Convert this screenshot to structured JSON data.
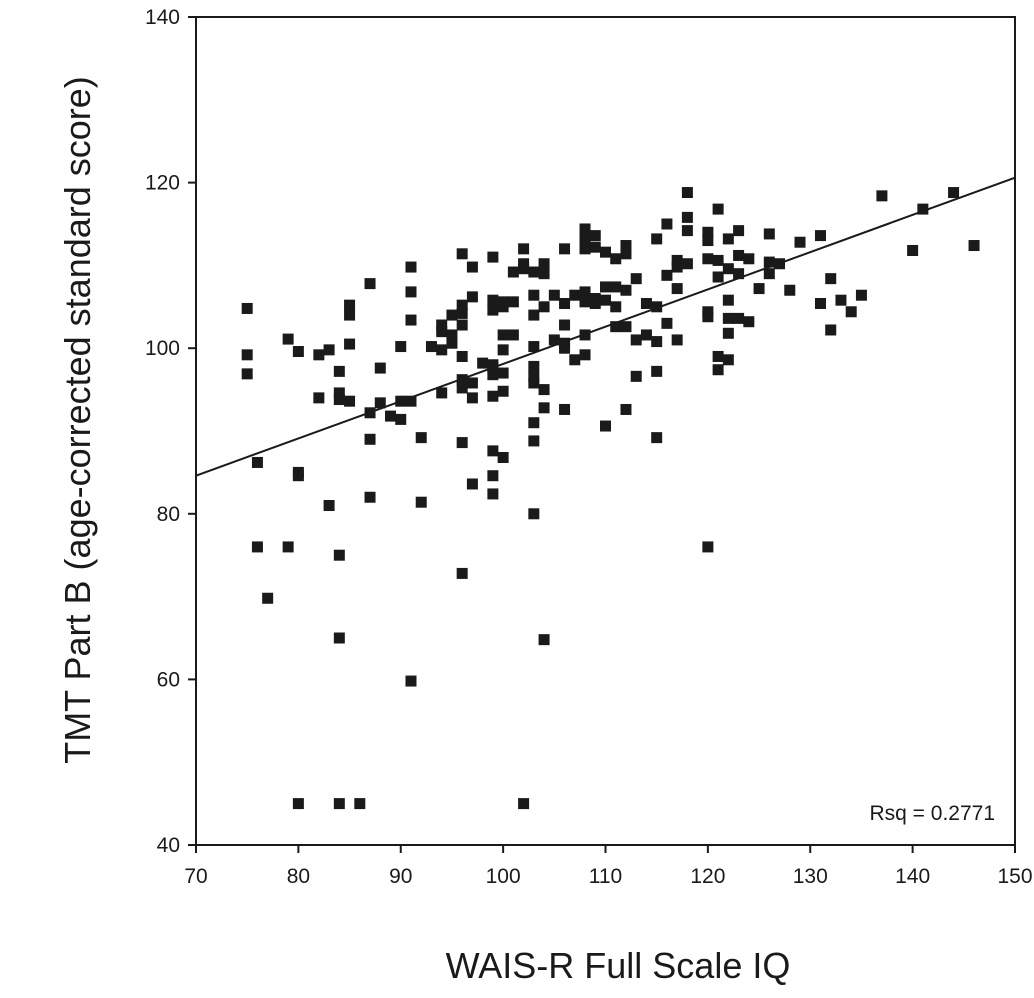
{
  "chart_data": {
    "type": "scatter",
    "xlabel": "WAIS-R Full Scale IQ",
    "ylabel": "TMT Part B (age-corrected standard score)",
    "xlim": [
      70,
      150
    ],
    "ylim": [
      40,
      140
    ],
    "xticks": [
      "70",
      "80",
      "90",
      "100",
      "110",
      "120",
      "130",
      "140",
      "150"
    ],
    "yticks": [
      "40",
      "60",
      "80",
      "100",
      "120",
      "140"
    ],
    "annotation": "Rsq = 0.2771",
    "fit_line": {
      "x": [
        70,
        150
      ],
      "y": [
        84.6,
        120.6
      ]
    },
    "grid": false,
    "marker": "square",
    "color": "#1a1a1a",
    "points": [
      [
        75,
        104.8
      ],
      [
        75,
        99.2
      ],
      [
        75,
        96.9
      ],
      [
        76,
        86.2
      ],
      [
        76,
        76
      ],
      [
        77,
        69.8
      ],
      [
        79,
        101.1
      ],
      [
        79,
        76
      ],
      [
        80,
        99.6
      ],
      [
        80,
        85
      ],
      [
        80,
        84.6
      ],
      [
        80,
        45
      ],
      [
        82,
        99.2
      ],
      [
        82,
        94
      ],
      [
        83,
        99.8
      ],
      [
        83,
        81
      ],
      [
        84,
        97.2
      ],
      [
        84,
        94.6
      ],
      [
        84,
        93.8
      ],
      [
        84,
        75
      ],
      [
        84,
        65
      ],
      [
        84,
        45
      ],
      [
        85,
        105.2
      ],
      [
        85,
        104
      ],
      [
        85,
        100.5
      ],
      [
        85,
        93.6
      ],
      [
        86,
        45
      ],
      [
        87,
        107.8
      ],
      [
        87,
        92.2
      ],
      [
        87,
        89
      ],
      [
        87,
        82
      ],
      [
        88,
        97.6
      ],
      [
        88,
        93.4
      ],
      [
        89,
        91.8
      ],
      [
        90,
        100.2
      ],
      [
        90,
        93.6
      ],
      [
        90,
        91.4
      ],
      [
        91,
        109.8
      ],
      [
        91,
        106.8
      ],
      [
        91,
        103.4
      ],
      [
        91,
        93.6
      ],
      [
        91,
        59.8
      ],
      [
        92,
        89.2
      ],
      [
        92,
        81.4
      ],
      [
        93,
        100.2
      ],
      [
        94,
        102.8
      ],
      [
        94,
        102
      ],
      [
        94,
        99.8
      ],
      [
        94,
        94.6
      ],
      [
        95,
        104
      ],
      [
        95,
        101.6
      ],
      [
        95,
        100.6
      ],
      [
        96,
        111.4
      ],
      [
        96,
        105.2
      ],
      [
        96,
        104.2
      ],
      [
        96,
        102.8
      ],
      [
        96,
        99
      ],
      [
        96,
        96.2
      ],
      [
        96,
        95.2
      ],
      [
        96,
        88.6
      ],
      [
        96,
        72.8
      ],
      [
        97,
        109.8
      ],
      [
        97,
        106.2
      ],
      [
        97,
        95.8
      ],
      [
        97,
        94
      ],
      [
        97,
        83.6
      ],
      [
        98,
        98.2
      ],
      [
        99,
        111
      ],
      [
        99,
        105.8
      ],
      [
        99,
        104.6
      ],
      [
        99,
        98
      ],
      [
        99,
        97.6
      ],
      [
        99,
        96.8
      ],
      [
        99,
        94.2
      ],
      [
        99,
        87.6
      ],
      [
        99,
        84.6
      ],
      [
        99,
        82.4
      ],
      [
        100,
        105.6
      ],
      [
        100,
        105
      ],
      [
        100,
        101.6
      ],
      [
        100,
        99.8
      ],
      [
        100,
        97
      ],
      [
        100,
        94.8
      ],
      [
        100,
        86.8
      ],
      [
        101,
        109.2
      ],
      [
        101,
        105.6
      ],
      [
        101,
        101.6
      ],
      [
        102,
        112
      ],
      [
        102,
        110.2
      ],
      [
        102,
        109.6
      ],
      [
        102,
        45
      ],
      [
        103,
        109.2
      ],
      [
        103,
        106.4
      ],
      [
        103,
        104
      ],
      [
        103,
        100.2
      ],
      [
        103,
        97.8
      ],
      [
        103,
        96.6
      ],
      [
        103,
        95.8
      ],
      [
        103,
        91
      ],
      [
        103,
        88.8
      ],
      [
        103,
        80
      ],
      [
        104,
        110.2
      ],
      [
        104,
        109
      ],
      [
        104,
        105
      ],
      [
        104,
        95
      ],
      [
        104,
        92.8
      ],
      [
        104,
        64.8
      ],
      [
        105,
        106.4
      ],
      [
        105,
        101
      ],
      [
        106,
        112
      ],
      [
        106,
        105.4
      ],
      [
        106,
        102.8
      ],
      [
        106,
        100.6
      ],
      [
        106,
        100
      ],
      [
        106,
        92.6
      ],
      [
        107,
        106.4
      ],
      [
        107,
        98.6
      ],
      [
        108,
        114.4
      ],
      [
        108,
        113.2
      ],
      [
        108,
        112
      ],
      [
        108,
        106.8
      ],
      [
        108,
        106
      ],
      [
        108,
        105.6
      ],
      [
        108,
        101.6
      ],
      [
        108,
        99.2
      ],
      [
        109,
        113.6
      ],
      [
        109,
        112.2
      ],
      [
        109,
        106
      ],
      [
        109,
        105.4
      ],
      [
        110,
        111.6
      ],
      [
        110,
        107.4
      ],
      [
        110,
        105.8
      ],
      [
        110,
        90.6
      ],
      [
        111,
        110.8
      ],
      [
        111,
        107.4
      ],
      [
        111,
        105
      ],
      [
        111,
        102.6
      ],
      [
        112,
        112.4
      ],
      [
        112,
        111.4
      ],
      [
        112,
        107
      ],
      [
        112,
        102.6
      ],
      [
        112,
        92.6
      ],
      [
        113,
        108.4
      ],
      [
        113,
        101
      ],
      [
        113,
        96.6
      ],
      [
        114,
        105.4
      ],
      [
        114,
        101.6
      ],
      [
        115,
        113.2
      ],
      [
        115,
        105
      ],
      [
        115,
        100.8
      ],
      [
        115,
        97.2
      ],
      [
        115,
        89.2
      ],
      [
        116,
        115
      ],
      [
        116,
        108.8
      ],
      [
        116,
        103
      ],
      [
        117,
        110.6
      ],
      [
        117,
        109.8
      ],
      [
        117,
        107.2
      ],
      [
        117,
        101
      ],
      [
        118,
        118.8
      ],
      [
        118,
        115.8
      ],
      [
        118,
        114.2
      ],
      [
        118,
        110.2
      ],
      [
        120,
        114
      ],
      [
        120,
        113
      ],
      [
        120,
        110.8
      ],
      [
        120,
        104.4
      ],
      [
        120,
        103.8
      ],
      [
        120,
        76
      ],
      [
        121,
        116.8
      ],
      [
        121,
        110.6
      ],
      [
        121,
        108.6
      ],
      [
        121,
        99
      ],
      [
        121,
        97.4
      ],
      [
        122,
        113.2
      ],
      [
        122,
        109.6
      ],
      [
        122,
        105.8
      ],
      [
        122,
        103.6
      ],
      [
        122,
        101.8
      ],
      [
        122,
        98.6
      ],
      [
        123,
        114.2
      ],
      [
        123,
        111.2
      ],
      [
        123,
        109
      ],
      [
        123,
        103.6
      ],
      [
        124,
        110.8
      ],
      [
        124,
        103.2
      ],
      [
        125,
        107.2
      ],
      [
        126,
        113.8
      ],
      [
        126,
        110.4
      ],
      [
        126,
        109
      ],
      [
        127,
        110.2
      ],
      [
        128,
        107
      ],
      [
        129,
        112.8
      ],
      [
        131,
        113.6
      ],
      [
        131,
        105.4
      ],
      [
        132,
        108.4
      ],
      [
        132,
        102.2
      ],
      [
        133,
        105.8
      ],
      [
        134,
        104.4
      ],
      [
        135,
        106.4
      ],
      [
        137,
        118.4
      ],
      [
        140,
        111.8
      ],
      [
        141,
        116.8
      ],
      [
        144,
        118.8
      ],
      [
        146,
        112.4
      ]
    ]
  }
}
